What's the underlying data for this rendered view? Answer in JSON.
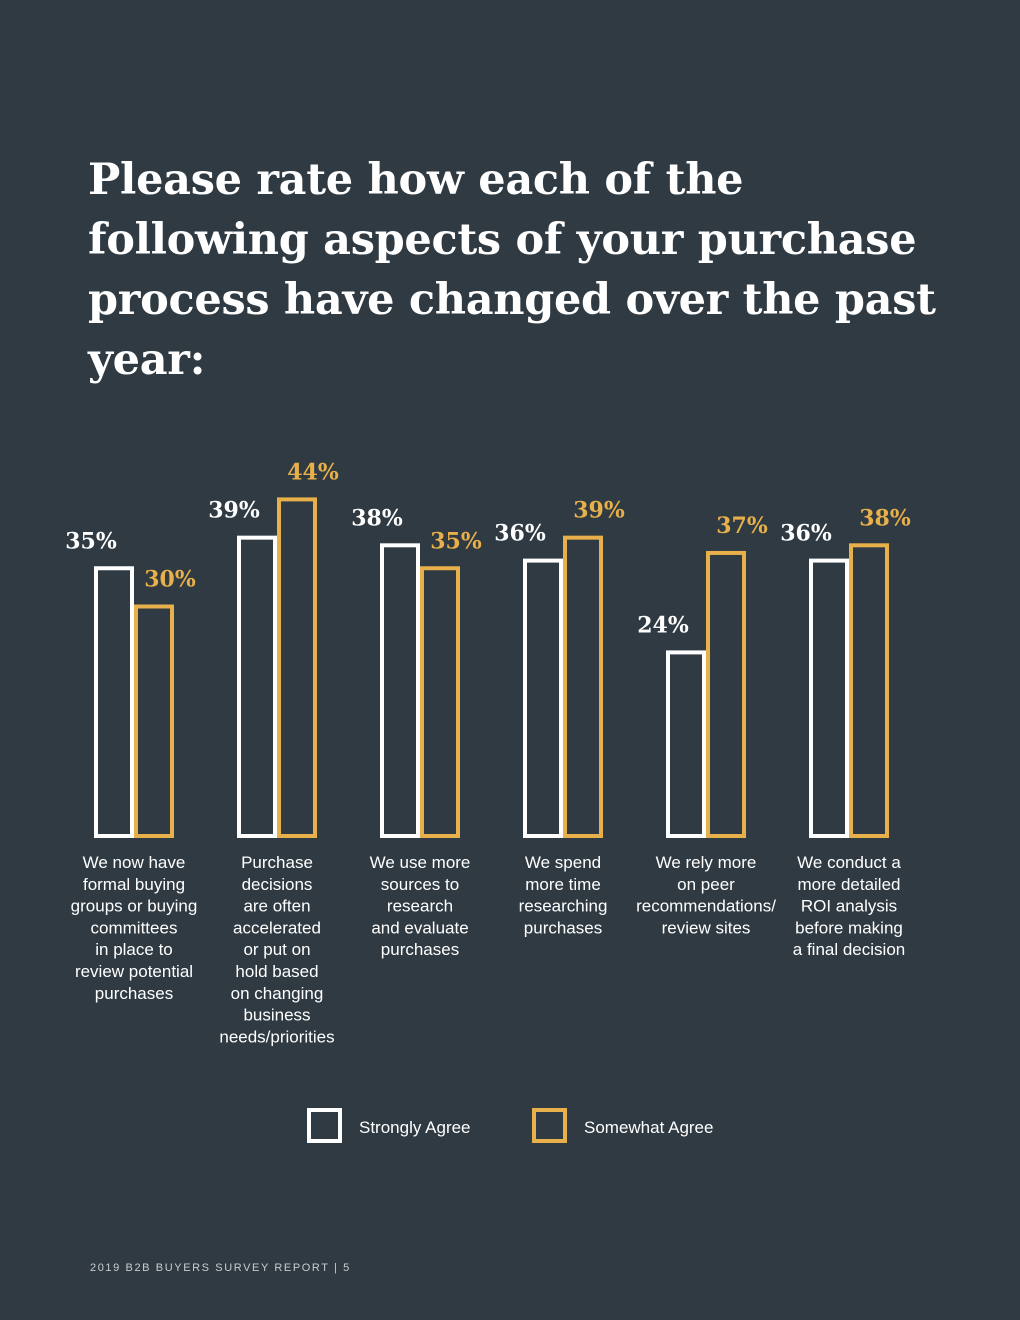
{
  "page": {
    "title": "Please rate how each of the following aspects of your purchase process have changed over the past year:",
    "footer": "2019 B2B BUYERS SURVEY REPORT | 5"
  },
  "colors": {
    "background": "#2f3a42",
    "strongly": "#ffffff",
    "somewhat": "#e8b04a"
  },
  "chart_data": {
    "type": "bar",
    "title": "Please rate how each of the following aspects of your purchase process have changed over the past year:",
    "xlabel": "",
    "ylabel": "",
    "ylim": [
      0,
      44
    ],
    "grid": false,
    "legend_position": "bottom-center",
    "categories": [
      "We now have formal buying groups or buying committees in place to review potential purchases",
      "Purchase decisions are often accelerated or put on hold based on changing business needs/priorities",
      "We use more sources to research and evaluate purchases",
      "We spend more time researching purchases",
      "We rely more on peer recommendations/ review sites",
      "We conduct a more detailed ROI analysis before making a final decision"
    ],
    "category_lines": [
      [
        "We now have",
        "formal buying",
        "groups or buying",
        "committees",
        "in place to",
        "review potential",
        "purchases"
      ],
      [
        "Purchase",
        "decisions",
        "are often",
        "accelerated",
        "or put on",
        "hold based",
        "on changing",
        "business",
        "needs/priorities"
      ],
      [
        "We use more",
        "sources to",
        "research",
        "and evaluate",
        "purchases"
      ],
      [
        "We spend",
        "more time",
        "researching",
        "purchases"
      ],
      [
        "We rely more",
        "on peer",
        "recommendations/",
        "review sites"
      ],
      [
        "We conduct a",
        "more detailed",
        "ROI analysis",
        "before making",
        "a final decision"
      ]
    ],
    "series": [
      {
        "name": "Strongly Agree",
        "values": [
          35,
          39,
          38,
          36,
          24,
          36
        ],
        "labels": [
          "35%",
          "39%",
          "38%",
          "36%",
          "24%",
          "36%"
        ],
        "color": "#ffffff"
      },
      {
        "name": "Somewhat Agree",
        "values": [
          30,
          44,
          35,
          39,
          37,
          38
        ],
        "labels": [
          "30%",
          "44%",
          "35%",
          "39%",
          "37%",
          "38%"
        ],
        "color": "#e8b04a"
      }
    ]
  }
}
